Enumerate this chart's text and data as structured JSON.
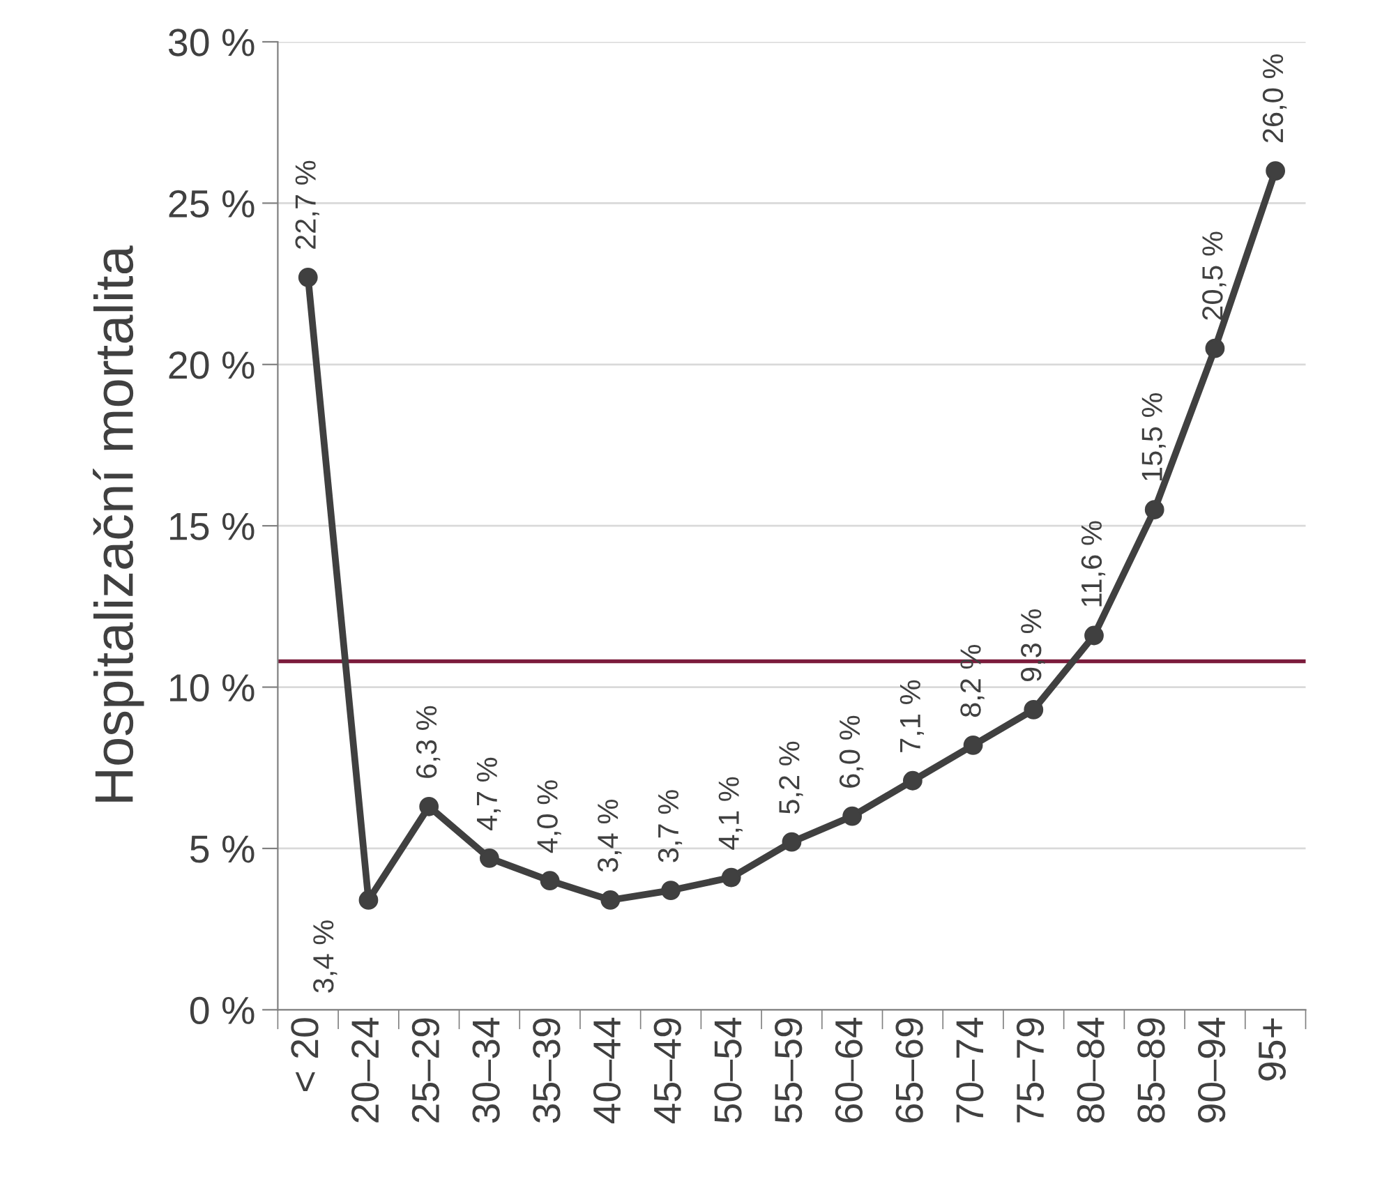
{
  "chart_data": {
    "type": "line",
    "ylabel": "Hospitalizační mortalita",
    "categories": [
      "< 20",
      "20–24",
      "25–29",
      "30–34",
      "35–39",
      "40–44",
      "45–49",
      "50–54",
      "55–59",
      "60–64",
      "65–69",
      "70–74",
      "75–79",
      "80–84",
      "85–89",
      "90–94",
      "95+"
    ],
    "series": [
      {
        "color": "#404040",
        "values": [
          22.7,
          3.4,
          6.3,
          4.7,
          4.0,
          3.4,
          3.7,
          4.1,
          5.2,
          6.0,
          7.1,
          8.2,
          9.3,
          11.6,
          15.5,
          20.5,
          26.0
        ],
        "value_labels": [
          "22,7 %",
          "3,4 %",
          "6,3 %",
          "4,7 %",
          "4,0 %",
          "3,4 %",
          "3,7 %",
          "4,1 %",
          "5,2 %",
          "6,0 %",
          "7,1 %",
          "8,2 %",
          "9,3 %",
          "11,6 %",
          "15,5 %",
          "20,5 %",
          "26,0 %"
        ]
      }
    ],
    "ylim": [
      0,
      30
    ],
    "yticks": [
      {
        "value": 0,
        "label": "0 %"
      },
      {
        "value": 5,
        "label": "5 %"
      },
      {
        "value": 10,
        "label": "10 %"
      },
      {
        "value": 15,
        "label": "15 %"
      },
      {
        "value": 20,
        "label": "20 %"
      },
      {
        "value": 25,
        "label": "25 %"
      },
      {
        "value": 30,
        "label": "30 %"
      }
    ],
    "ref_lines": [
      {
        "axis": "y",
        "value": 10.8,
        "color": "#7b1c3c"
      }
    ],
    "grid": "y",
    "marker": "circle",
    "line_style": "solid",
    "legend": false
  }
}
